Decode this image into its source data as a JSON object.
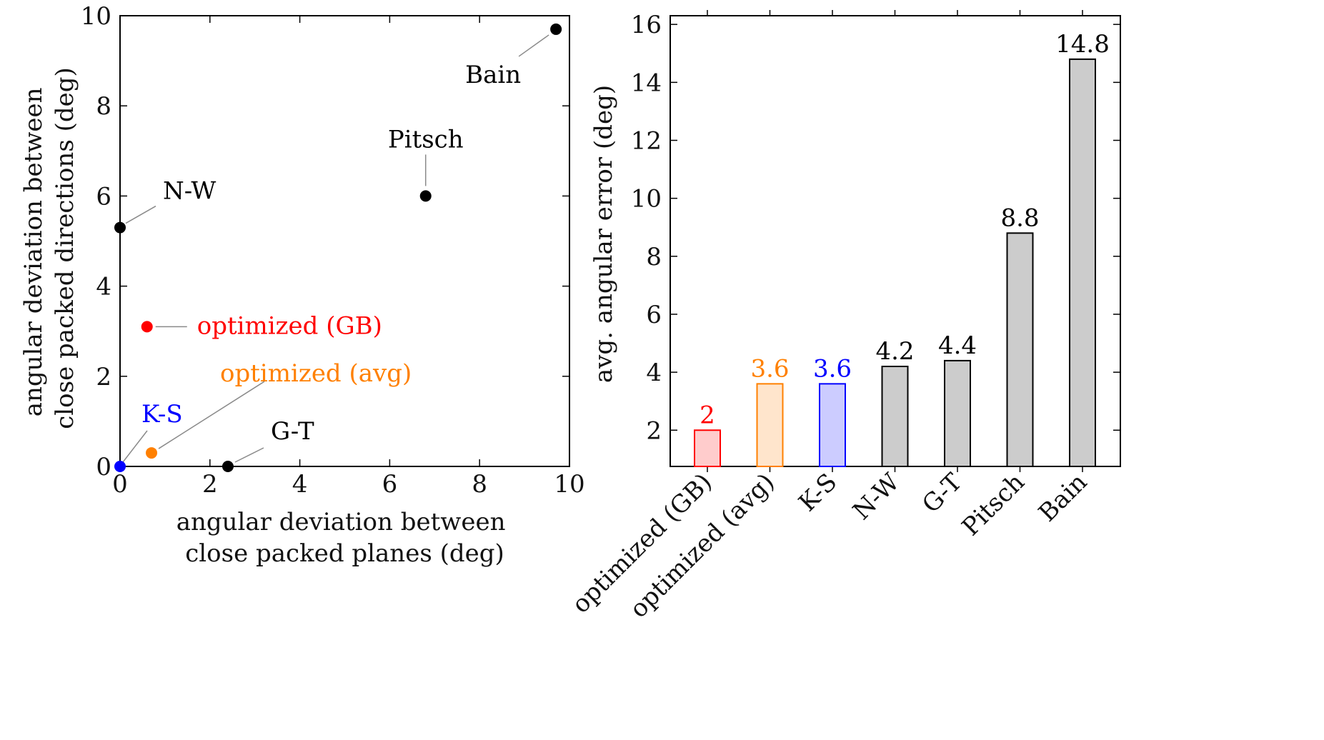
{
  "chart_data": [
    {
      "type": "scatter",
      "xlabel": [
        "angular deviation between",
        "close packed planes (deg)"
      ],
      "ylabel": [
        "angular deviation between",
        "close packed directions (deg)"
      ],
      "xlim": [
        0,
        10
      ],
      "ylim": [
        0,
        10
      ],
      "xticks": [
        "0",
        "2",
        "4",
        "6",
        "8",
        "10"
      ],
      "yticks": [
        "0",
        "2",
        "4",
        "6",
        "8",
        "10"
      ],
      "grid": false,
      "points": [
        {
          "label": "Bain",
          "x": 9.7,
          "y": 9.7,
          "color": "#000000"
        },
        {
          "label": "Pitsch",
          "x": 6.8,
          "y": 6.0,
          "color": "#000000"
        },
        {
          "label": "N-W",
          "x": 0.0,
          "y": 5.3,
          "color": "#000000"
        },
        {
          "label": "optimized (GB)",
          "x": 0.6,
          "y": 3.1,
          "color": "#ff0000"
        },
        {
          "label": "optimized (avg)",
          "x": 0.7,
          "y": 0.3,
          "color": "#ff8000"
        },
        {
          "label": "K-S",
          "x": 0.0,
          "y": 0.0,
          "color": "#0000ff"
        },
        {
          "label": "G-T",
          "x": 2.4,
          "y": 0.0,
          "color": "#000000"
        }
      ]
    },
    {
      "type": "bar",
      "ylabel": "avg. angular error (deg)",
      "ylim": [
        0.75,
        16.3
      ],
      "yticks": [
        "2",
        "4",
        "6",
        "8",
        "10",
        "12",
        "14",
        "16"
      ],
      "grid": false,
      "categories": [
        "optimized (GB)",
        "optimized (avg)",
        "K-S",
        "N-W",
        "G-T",
        "Pitsch",
        "Bain"
      ],
      "values": [
        2,
        3.6,
        3.6,
        4.2,
        4.4,
        8.8,
        14.8
      ],
      "value_labels": [
        "2",
        "3.6",
        "3.6",
        "4.2",
        "4.4",
        "8.8",
        "14.8"
      ],
      "fill_colors": [
        "#ffcccc",
        "#ffe5cc",
        "#ccccff",
        "#cccccc",
        "#cccccc",
        "#cccccc",
        "#cccccc"
      ],
      "stroke_colors": [
        "#ff0000",
        "#ff8000",
        "#0000ff",
        "#000000",
        "#000000",
        "#000000",
        "#000000"
      ],
      "label_colors": [
        "#ff0000",
        "#ff8000",
        "#0000ff",
        "#000000",
        "#000000",
        "#000000",
        "#000000"
      ]
    }
  ]
}
